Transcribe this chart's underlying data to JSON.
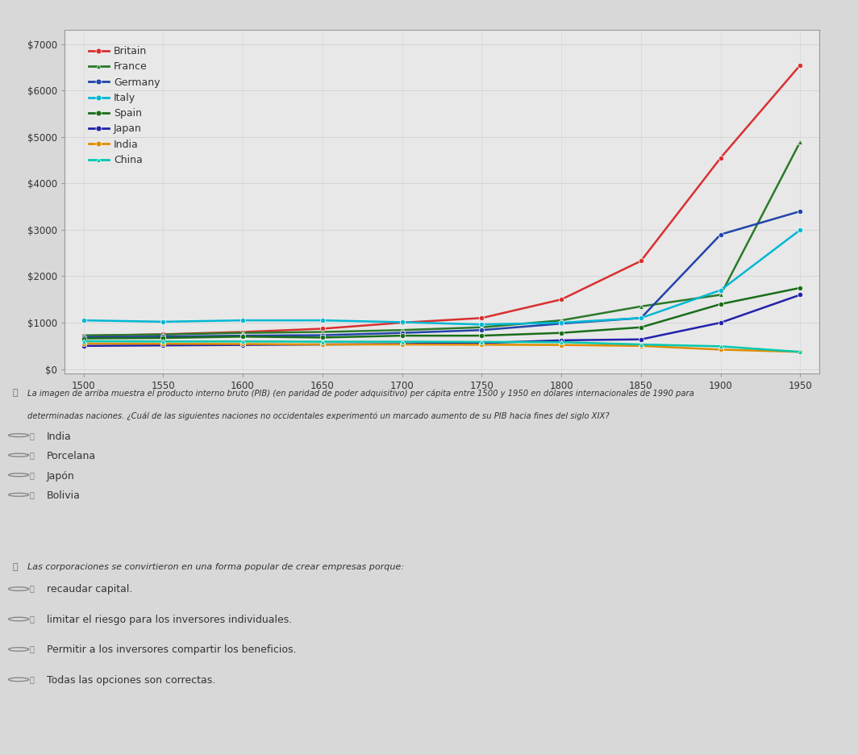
{
  "years": [
    1500,
    1550,
    1600,
    1650,
    1700,
    1750,
    1800,
    1850,
    1900,
    1950
  ],
  "series": {
    "Britain": {
      "color": "#d93030",
      "marker": "o",
      "values": [
        714,
        750,
        800,
        870,
        1000,
        1100,
        1500,
        2330,
        4550,
        6550
      ]
    },
    "France": {
      "color": "#2a7a2a",
      "marker": "^",
      "values": [
        727,
        745,
        780,
        800,
        840,
        900,
        1050,
        1350,
        1600,
        4900
      ]
    },
    "Germany": {
      "color": "#2244aa",
      "marker": "o",
      "values": [
        688,
        700,
        720,
        730,
        780,
        840,
        980,
        1100,
        2900,
        3400
      ]
    },
    "Italy": {
      "color": "#00b8d4",
      "marker": "o",
      "values": [
        1050,
        1020,
        1050,
        1050,
        1010,
        960,
        1000,
        1100,
        1700,
        3000
      ]
    },
    "Spain": {
      "color": "#1a6e1a",
      "marker": "o",
      "values": [
        661,
        670,
        700,
        680,
        720,
        720,
        780,
        900,
        1400,
        1750
      ]
    },
    "Japan": {
      "color": "#2222aa",
      "marker": "o",
      "values": [
        500,
        510,
        520,
        530,
        540,
        560,
        620,
        640,
        1000,
        1600
      ]
    },
    "India": {
      "color": "#e08c00",
      "marker": "o",
      "values": [
        550,
        545,
        540,
        530,
        530,
        525,
        520,
        500,
        420,
        370
      ]
    },
    "China": {
      "color": "#00c8b0",
      "marker": "^",
      "values": [
        600,
        595,
        595,
        590,
        590,
        585,
        580,
        530,
        490,
        370
      ]
    }
  },
  "yticks": [
    0,
    1000,
    2000,
    3000,
    4000,
    5000,
    6000,
    7000
  ],
  "ytick_labels": [
    "$0",
    "$1000",
    "$2000",
    "$3000",
    "$4000",
    "$5000",
    "$6000",
    "$7000"
  ],
  "ylim": [
    -100,
    7300
  ],
  "xlim": [
    1488,
    1962
  ],
  "xticks": [
    1500,
    1550,
    1600,
    1650,
    1700,
    1750,
    1800,
    1850,
    1900,
    1950
  ],
  "overall_bg": "#d8d8d8",
  "chart_area_bg": "#e8e8e8",
  "plot_bg": "#e8e8e8",
  "box_bg": "#ffffff",
  "box_border": "#cccccc",
  "text_color": "#333333",
  "q1_text_line1": "La imagen de arriba muestra el producto interno bruto (PIB) (en paridad de poder adquisitivo) per cápita entre 1500 y 1950 en dólares internacionales de 1990 para",
  "q1_text_line2": "determinadas naciones. ¿Cuál de las siguientes naciones no occidentales experimentó un marcado aumento de su PIB hacia fines del siglo XIX?",
  "q1_options": [
    "India",
    "Porcelana",
    "Japón",
    "Bolivia"
  ],
  "q2_text": "Las corporaciones se convirtieron en una forma popular de crear empresas porque:",
  "q2_options": [
    "recaudar capital.",
    "limitar el riesgo para los inversores individuales.",
    "Permitir a los inversores compartir los beneficios.",
    "Todas las opciones son correctas."
  ]
}
